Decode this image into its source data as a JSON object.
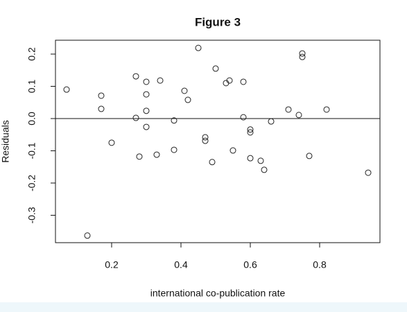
{
  "chart_data": {
    "type": "scatter",
    "title": "Figure 3",
    "x_label": "international co-publication rate",
    "y_label": "Residuals",
    "x": [
      0.07,
      0.17,
      0.17,
      0.2,
      0.13,
      0.27,
      0.27,
      0.28,
      0.3,
      0.3,
      0.3,
      0.3,
      0.33,
      0.34,
      0.38,
      0.38,
      0.41,
      0.42,
      0.45,
      0.47,
      0.47,
      0.49,
      0.5,
      0.53,
      0.54,
      0.55,
      0.58,
      0.58,
      0.6,
      0.6,
      0.6,
      0.63,
      0.64,
      0.66,
      0.71,
      0.74,
      0.75,
      0.75,
      0.77,
      0.82,
      0.94
    ],
    "values": [
      0.09,
      0.071,
      0.03,
      -0.075,
      -0.363,
      0.131,
      0.002,
      -0.118,
      0.114,
      0.075,
      0.024,
      -0.026,
      -0.112,
      0.118,
      -0.006,
      -0.097,
      0.086,
      0.058,
      0.219,
      -0.058,
      -0.069,
      -0.135,
      0.155,
      0.11,
      0.118,
      -0.099,
      0.114,
      0.004,
      -0.034,
      -0.043,
      -0.123,
      -0.131,
      -0.159,
      -0.009,
      0.028,
      0.011,
      0.202,
      0.191,
      -0.116,
      0.028,
      -0.168
    ],
    "color": "#222222",
    "xlim": [
      0.038,
      0.974
    ],
    "ylim": [
      -0.385,
      0.243
    ],
    "xticks": [
      0.2,
      0.4,
      0.6,
      0.8
    ],
    "yticks": [
      -0.3,
      -0.2,
      -0.1,
      {
        "value": 0,
        "label": "0.0"
      },
      0.1,
      0.2
    ],
    "hline": 0
  }
}
